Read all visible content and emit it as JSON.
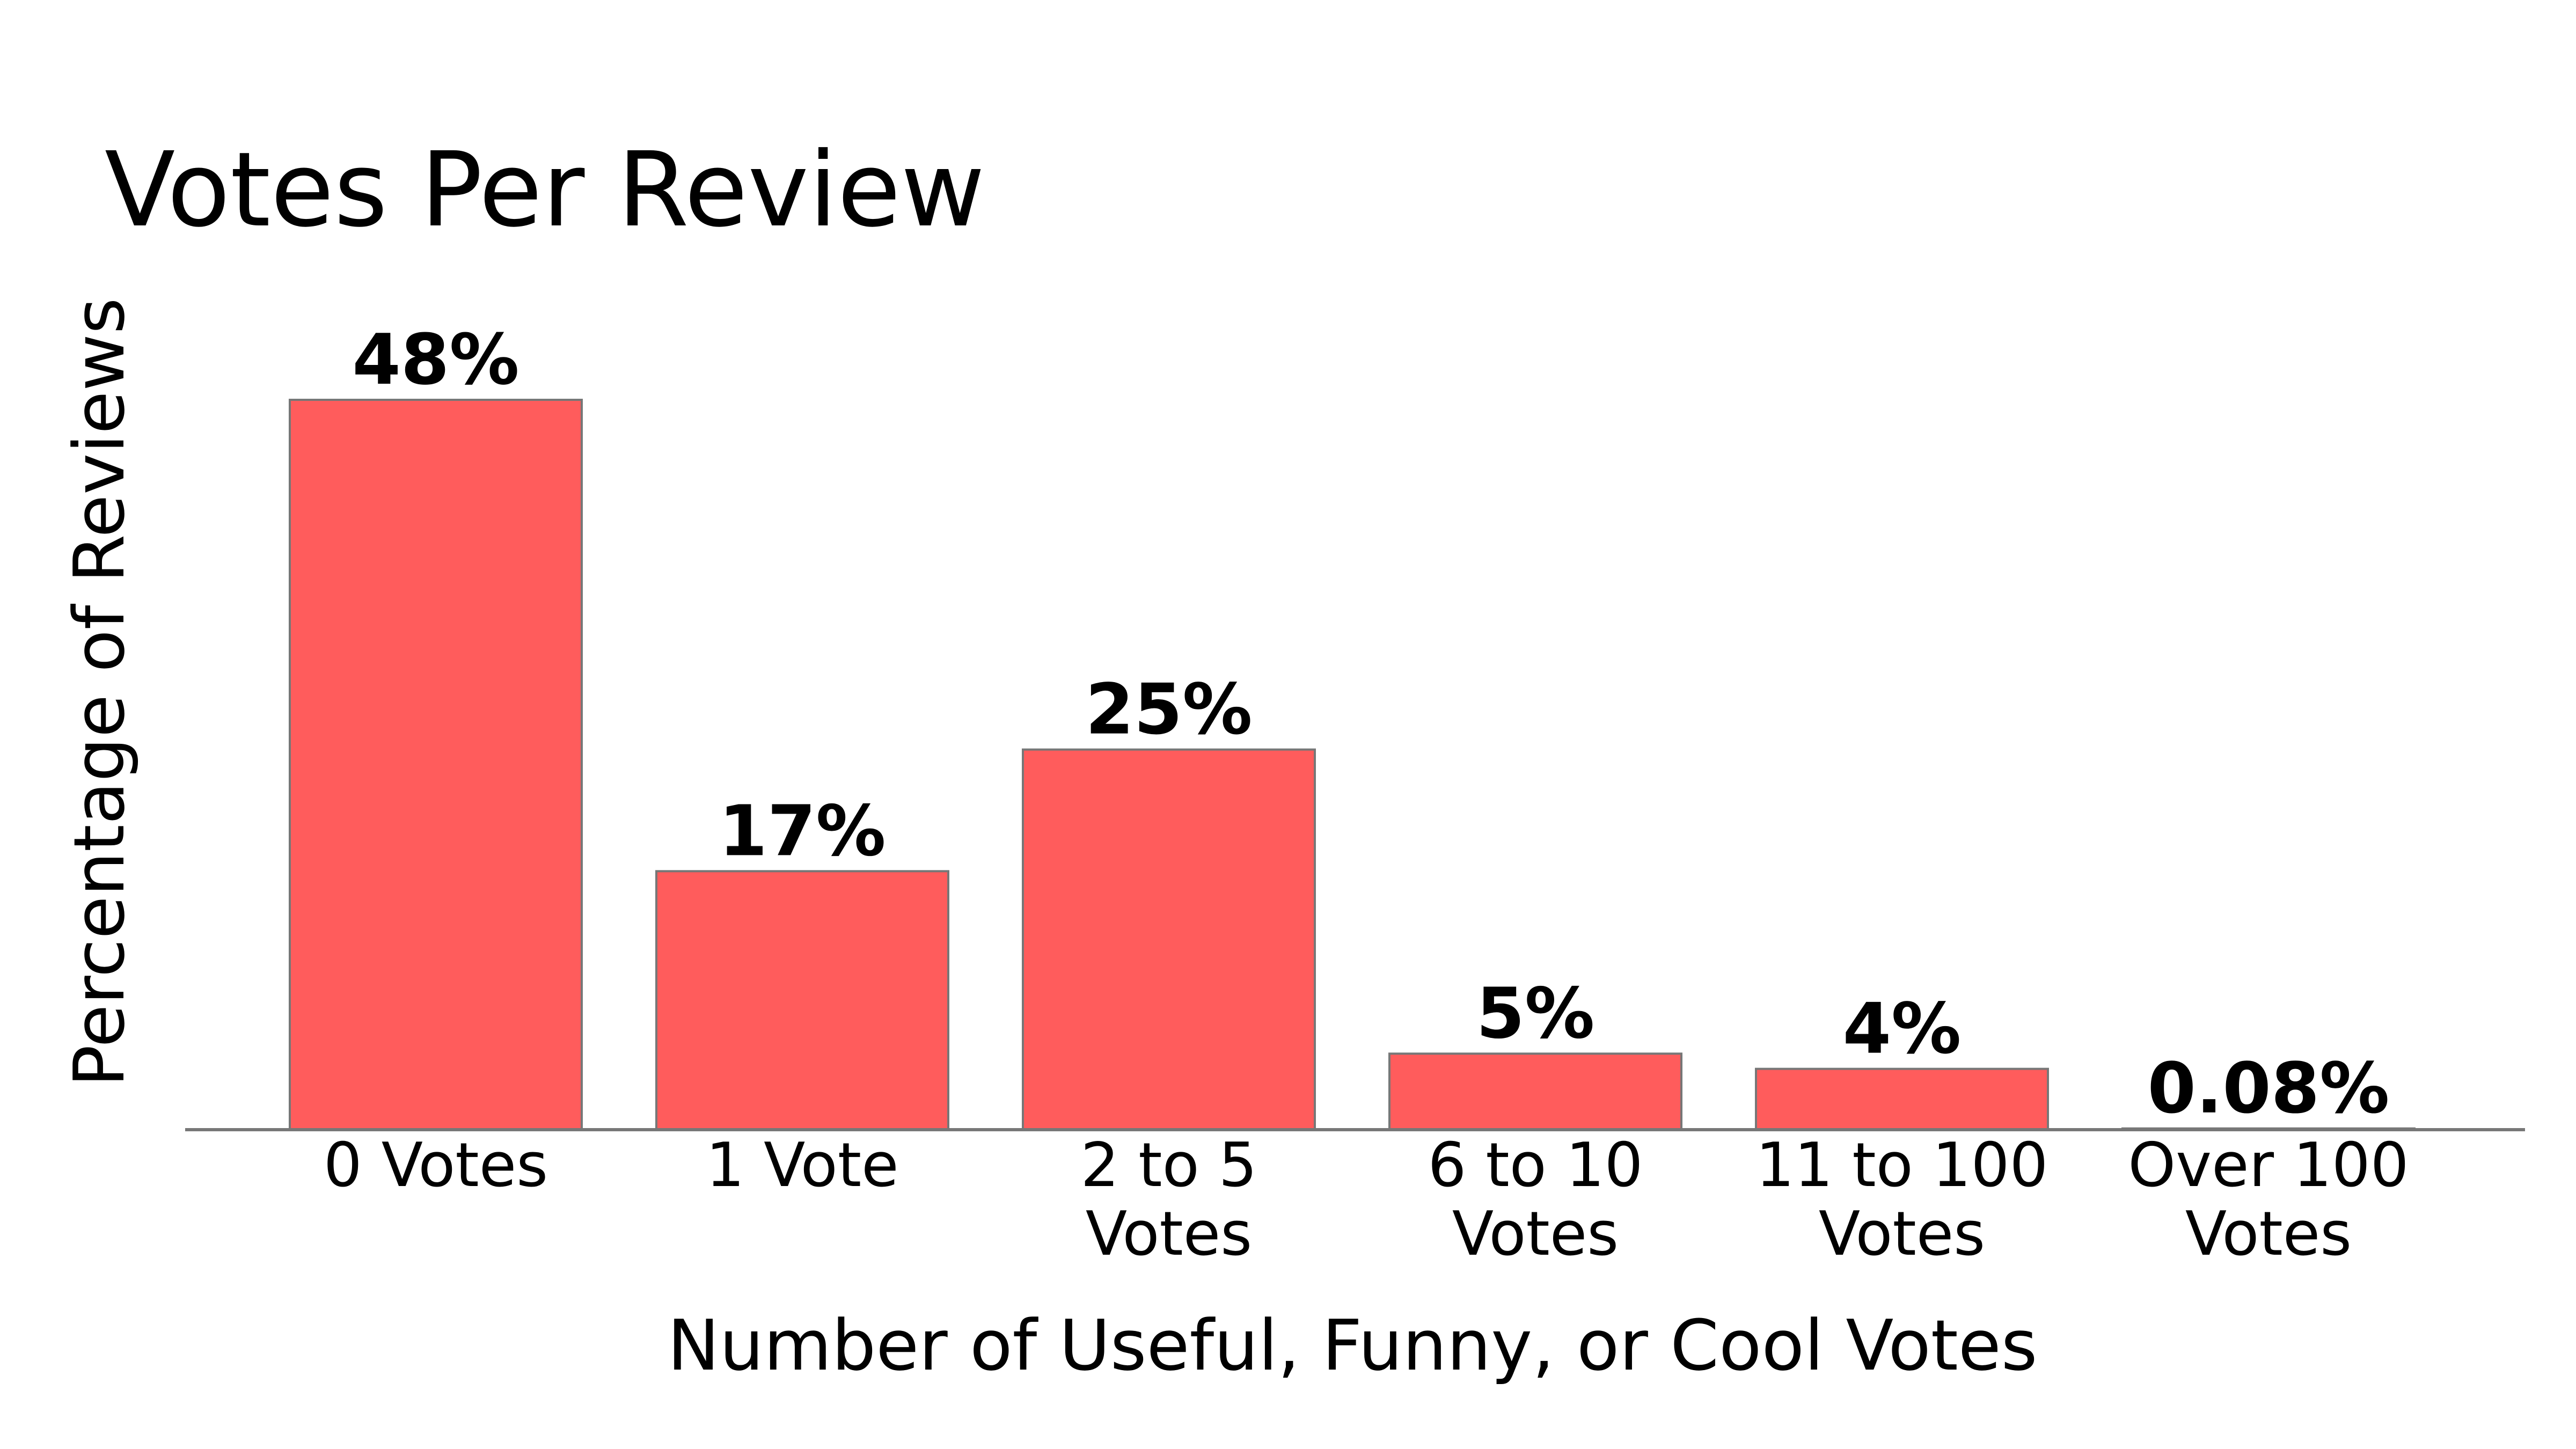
{
  "chart_data": {
    "type": "bar",
    "title": "Votes Per Review",
    "xlabel": "Number of Useful, Funny, or Cool Votes",
    "ylabel": "Percentage of Reviews",
    "categories": [
      [
        "0 Votes"
      ],
      [
        "1 Vote"
      ],
      [
        "2 to 5",
        "Votes"
      ],
      [
        "6 to 10",
        "Votes"
      ],
      [
        "11 to 100",
        "Votes"
      ],
      [
        "Over 100",
        "Votes"
      ]
    ],
    "values": [
      48,
      17,
      25,
      5,
      4,
      0.08
    ],
    "data_labels": [
      "48%",
      "17%",
      "25%",
      "5%",
      "4%",
      "0.08%"
    ],
    "ylim": [
      0,
      50
    ],
    "grid": false,
    "legend": "none",
    "colors": {
      "bar_fill": "#ff5c5c",
      "bar_edge": "#777777",
      "axis_line": "#777777"
    }
  }
}
